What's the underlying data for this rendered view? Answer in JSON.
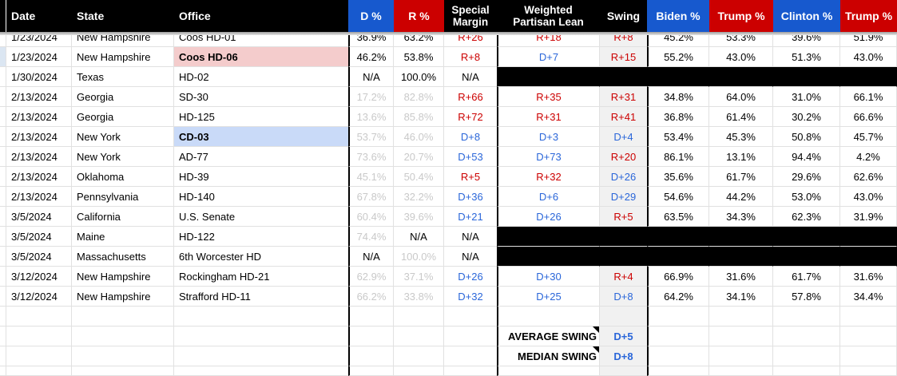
{
  "header": {
    "date": "Date",
    "state": "State",
    "office": "Office",
    "d_pct": "D %",
    "r_pct": "R %",
    "special_line1": "Special",
    "special_line2": "Margin",
    "weighted_line1": "Weighted",
    "weighted_line2": "Partisan Lean",
    "swing": "Swing",
    "biden": "Biden %",
    "trump_2020": "Trump %",
    "clinton": "Clinton %",
    "trump_2016": "Trump %"
  },
  "colors": {
    "header_black": "#000000",
    "header_blue": "#1759ce",
    "header_red": "#cc0000",
    "dem_text": "#2a66d9",
    "rep_text": "#cc0000",
    "muted_value_gray": "#c9c9c9",
    "office_highlight_pink": "#f4cccc",
    "office_highlight_blue": "#c9daf8",
    "row_margin_highlight": "#dbe6f2",
    "swing_column_bg": "#f1f1f1",
    "black_fill": "#000000",
    "gridline": "#e1e1e1"
  },
  "rows": [
    {
      "clipped": true,
      "date": "1/23/2024",
      "state": "New Hampshire",
      "office": "Coos HD-01",
      "d": "36.9%",
      "dc": "k",
      "r": "63.2%",
      "rc": "k",
      "sm": "R+26",
      "smc": "r",
      "lean": "R+18",
      "leanc": "r",
      "swing": "R+8",
      "swingc": "r",
      "p": [
        "45.2%",
        "53.3%",
        "39.6%",
        "51.9%"
      ]
    },
    {
      "date": "1/23/2024",
      "state": "New Hampshire",
      "office": "Coos HD-06",
      "office_hl": "pink",
      "sliver_hl": true,
      "d": "46.2%",
      "dc": "k",
      "r": "53.8%",
      "rc": "k",
      "sm": "R+8",
      "smc": "r",
      "lean": "D+7",
      "leanc": "b",
      "swing": "R+15",
      "swingc": "r",
      "p": [
        "55.2%",
        "43.0%",
        "51.3%",
        "43.0%"
      ]
    },
    {
      "date": "1/30/2024",
      "state": "Texas",
      "office": "HD-02",
      "d": "N/A",
      "dc": "k",
      "r": "100.0%",
      "rc": "k",
      "sm": "N/A",
      "smc": "k",
      "black": true
    },
    {
      "date": "2/13/2024",
      "state": "Georgia",
      "office": "SD-30",
      "d": "17.2%",
      "dc": "g",
      "r": "82.8%",
      "rc": "g",
      "sm": "R+66",
      "smc": "r",
      "lean": "R+35",
      "leanc": "r",
      "swing": "R+31",
      "swingc": "r",
      "p": [
        "34.8%",
        "64.0%",
        "31.0%",
        "66.1%"
      ]
    },
    {
      "date": "2/13/2024",
      "state": "Georgia",
      "office": "HD-125",
      "d": "13.6%",
      "dc": "g",
      "r": "85.8%",
      "rc": "g",
      "sm": "R+72",
      "smc": "r",
      "lean": "R+31",
      "leanc": "r",
      "swing": "R+41",
      "swingc": "r",
      "p": [
        "36.8%",
        "61.4%",
        "30.2%",
        "66.6%"
      ]
    },
    {
      "date": "2/13/2024",
      "state": "New York",
      "office": "CD-03",
      "office_hl": "blue",
      "d": "53.7%",
      "dc": "g",
      "r": "46.0%",
      "rc": "g",
      "sm": "D+8",
      "smc": "b",
      "lean": "D+3",
      "leanc": "b",
      "swing": "D+4",
      "swingc": "b",
      "p": [
        "53.4%",
        "45.3%",
        "50.8%",
        "45.7%"
      ]
    },
    {
      "date": "2/13/2024",
      "state": "New York",
      "office": "AD-77",
      "d": "73.6%",
      "dc": "g",
      "r": "20.7%",
      "rc": "g",
      "sm": "D+53",
      "smc": "b",
      "lean": "D+73",
      "leanc": "b",
      "swing": "R+20",
      "swingc": "r",
      "p": [
        "86.1%",
        "13.1%",
        "94.4%",
        "4.2%"
      ]
    },
    {
      "date": "2/13/2024",
      "state": "Oklahoma",
      "office": "HD-39",
      "d": "45.1%",
      "dc": "g",
      "r": "50.4%",
      "rc": "g",
      "sm": "R+5",
      "smc": "r",
      "lean": "R+32",
      "leanc": "r",
      "swing": "D+26",
      "swingc": "b",
      "p": [
        "35.6%",
        "61.7%",
        "29.6%",
        "62.6%"
      ]
    },
    {
      "date": "2/13/2024",
      "state": "Pennsylvania",
      "office": "HD-140",
      "d": "67.8%",
      "dc": "g",
      "r": "32.2%",
      "rc": "g",
      "sm": "D+36",
      "smc": "b",
      "lean": "D+6",
      "leanc": "b",
      "swing": "D+29",
      "swingc": "b",
      "p": [
        "54.6%",
        "44.2%",
        "53.0%",
        "43.0%"
      ]
    },
    {
      "date": "3/5/2024",
      "state": "California",
      "office": "U.S. Senate",
      "d": "60.4%",
      "dc": "g",
      "r": "39.6%",
      "rc": "g",
      "sm": "D+21",
      "smc": "b",
      "lean": "D+26",
      "leanc": "b",
      "swing": "R+5",
      "swingc": "r",
      "p": [
        "63.5%",
        "34.3%",
        "62.3%",
        "31.9%"
      ]
    },
    {
      "date": "3/5/2024",
      "state": "Maine",
      "office": "HD-122",
      "d": "74.4%",
      "dc": "g",
      "r": "N/A",
      "rc": "k",
      "sm": "N/A",
      "smc": "k",
      "black": true
    },
    {
      "date": "3/5/2024",
      "state": "Massachusetts",
      "office": "6th Worcester HD",
      "d": "N/A",
      "dc": "k",
      "r": "100.0%",
      "rc": "g",
      "sm": "N/A",
      "smc": "k",
      "black": true
    },
    {
      "date": "3/12/2024",
      "state": "New Hampshire",
      "office": "Rockingham HD-21",
      "d": "62.9%",
      "dc": "g",
      "r": "37.1%",
      "rc": "g",
      "sm": "D+26",
      "smc": "b",
      "lean": "D+30",
      "leanc": "b",
      "swing": "R+4",
      "swingc": "r",
      "p": [
        "66.9%",
        "31.6%",
        "61.7%",
        "31.6%"
      ]
    },
    {
      "date": "3/12/2024",
      "state": "New Hampshire",
      "office": "Strafford HD-11",
      "d": "66.2%",
      "dc": "g",
      "r": "33.8%",
      "rc": "g",
      "sm": "D+32",
      "smc": "b",
      "lean": "D+25",
      "leanc": "b",
      "swing": "D+8",
      "swingc": "b",
      "p": [
        "64.2%",
        "34.1%",
        "57.8%",
        "34.4%"
      ]
    },
    {
      "empty": true
    },
    {
      "foot": true,
      "lean": "AVERAGE SWING",
      "leanc": "k",
      "swing": "D+5",
      "swingc": "b"
    },
    {
      "foot": true,
      "lean": "MEDIAN SWING",
      "leanc": "k",
      "swing": "D+8",
      "swingc": "b"
    },
    {
      "empty": true,
      "partial": true
    }
  ],
  "footer": {
    "average_label": "AVERAGE SWING",
    "average_value": "D+5",
    "median_label": "MEDIAN SWING",
    "median_value": "D+8"
  }
}
